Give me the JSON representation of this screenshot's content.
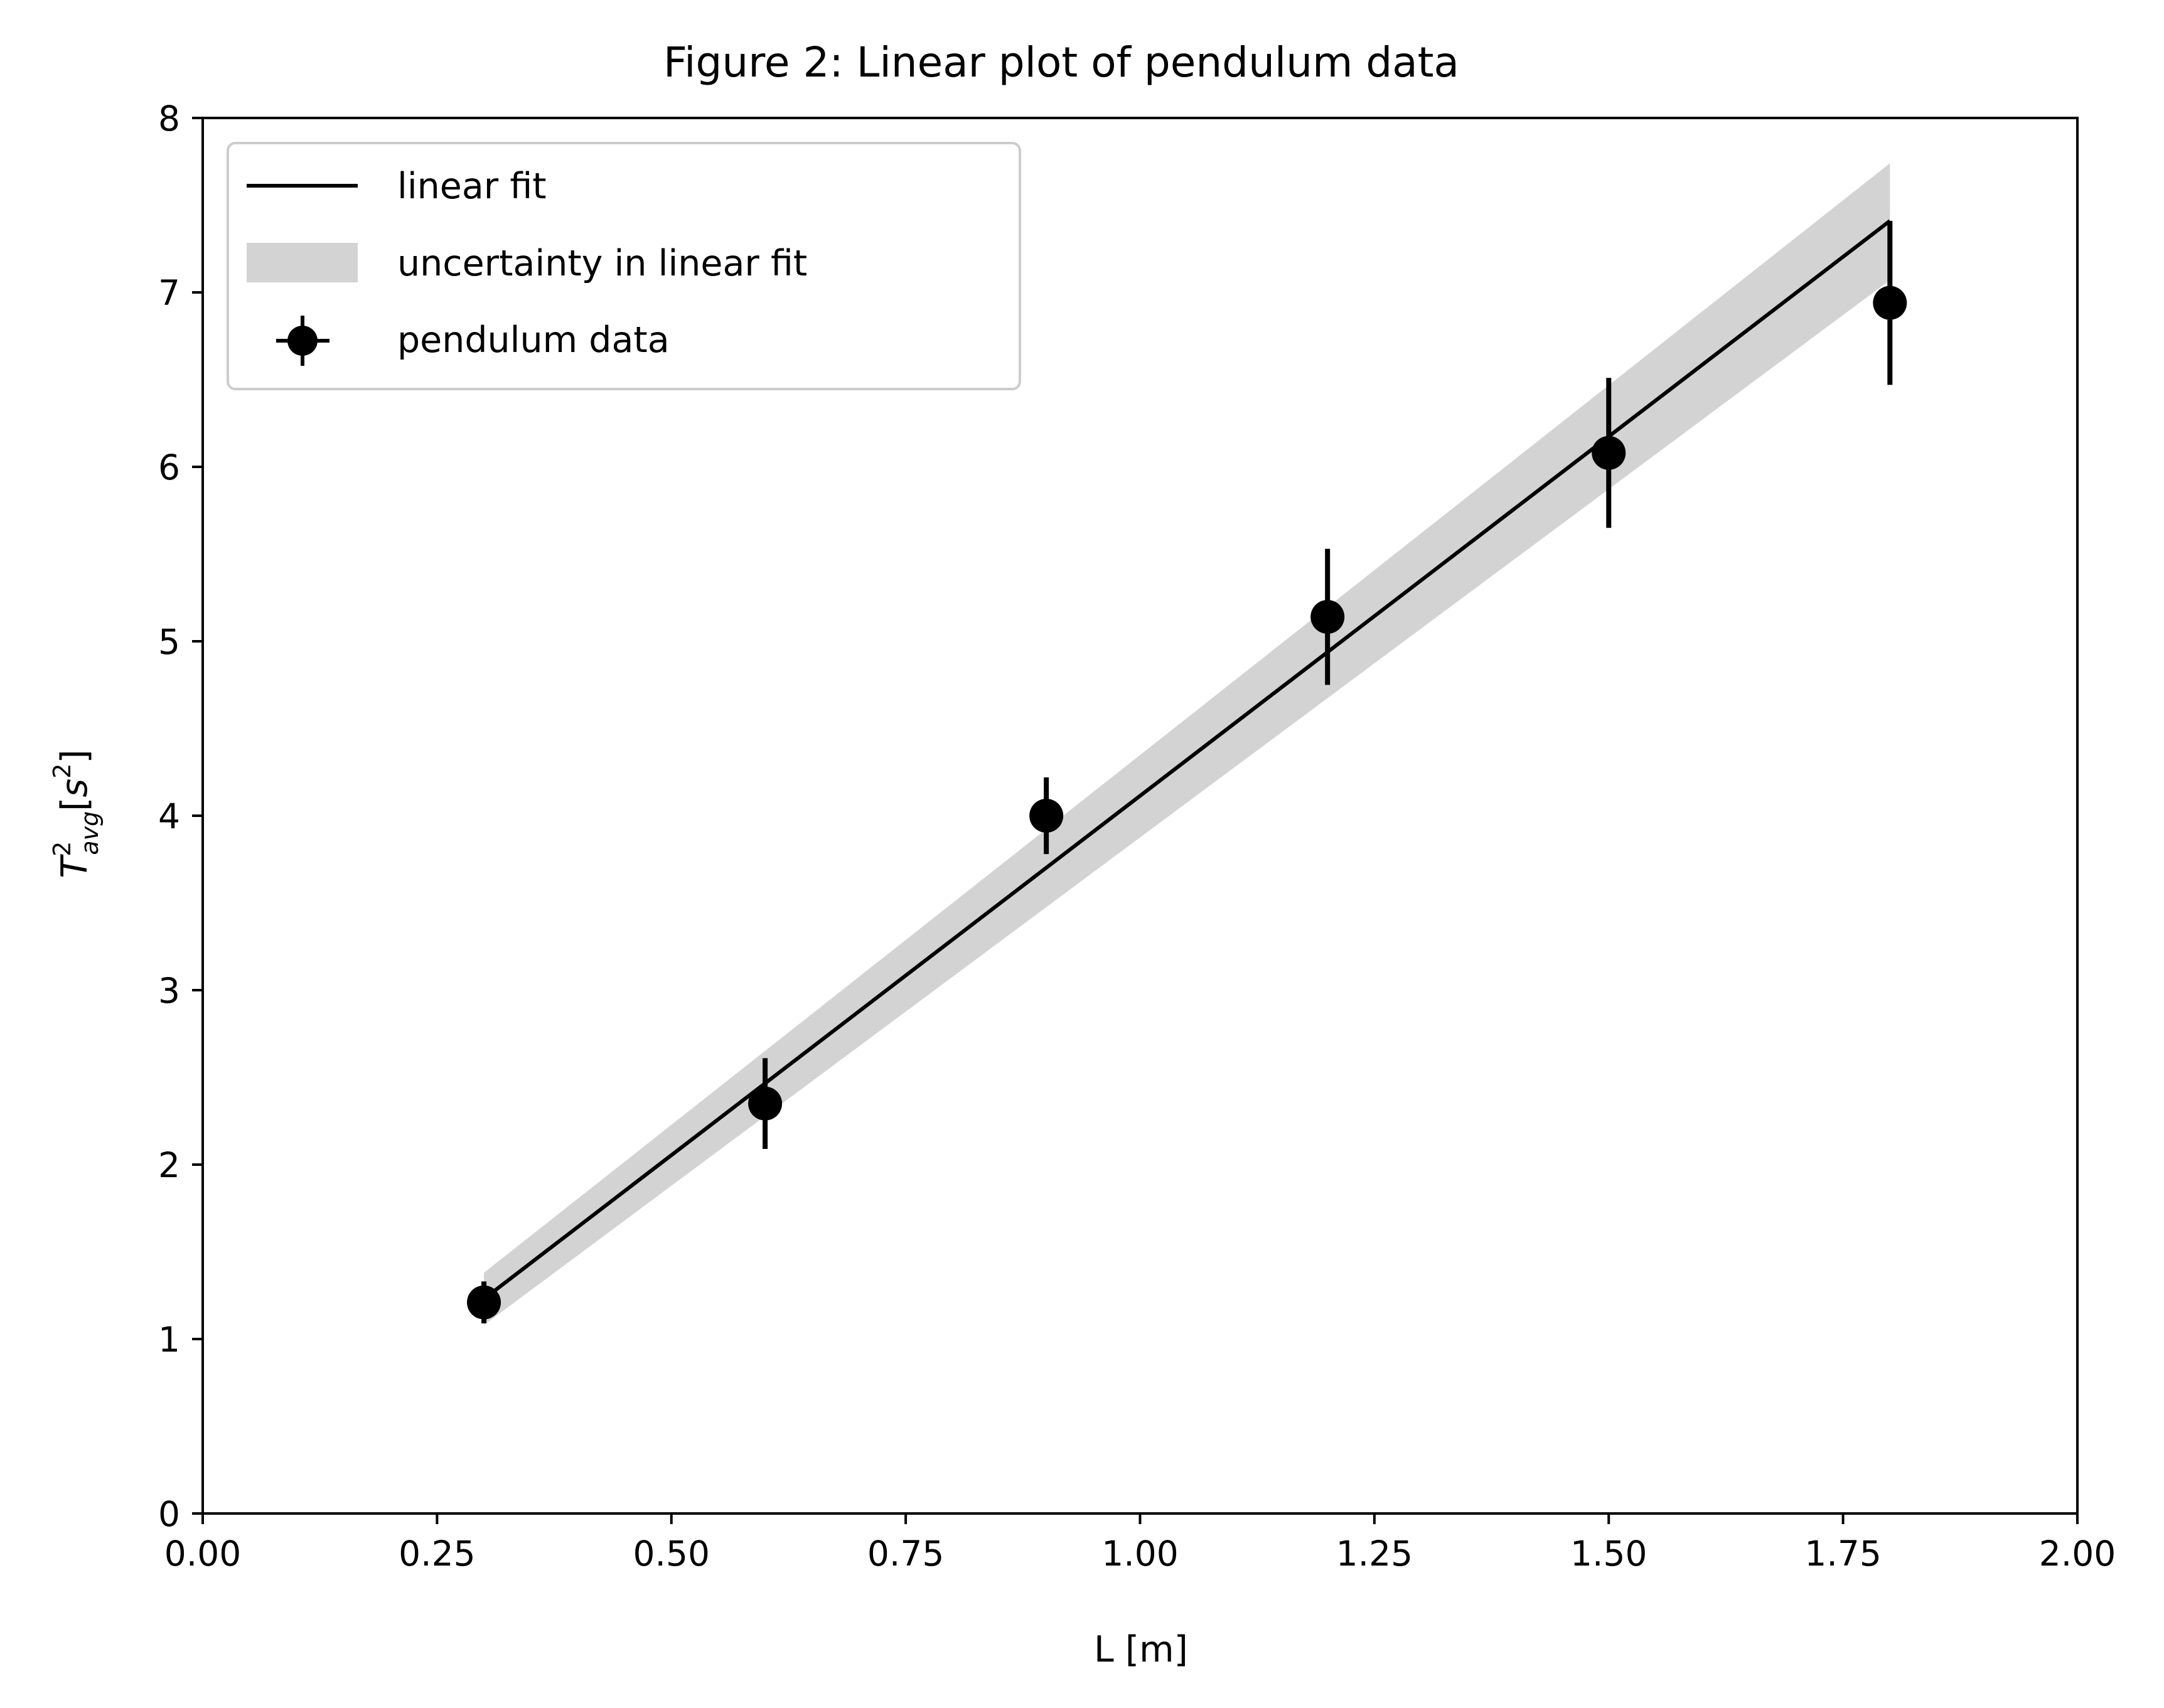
{
  "chart_data": {
    "type": "scatter",
    "title": "Figure 2: Linear plot of pendulum data",
    "xlabel": "L [m]",
    "ylabel": {
      "base": "T",
      "superscript": "2",
      "subscript": "avg",
      "bracket_open": "[",
      "unit_base": "s",
      "unit_superscript": "2",
      "bracket_close": "]"
    },
    "xlim": [
      0.0,
      2.0
    ],
    "ylim": [
      0,
      8
    ],
    "x_ticks": [
      "0.00",
      "0.25",
      "0.50",
      "0.75",
      "1.00",
      "1.25",
      "1.50",
      "1.75",
      "2.00"
    ],
    "y_ticks": [
      "0",
      "1",
      "2",
      "3",
      "4",
      "5",
      "6",
      "7",
      "8"
    ],
    "grid": false,
    "legend_position": "upper-left",
    "series": [
      {
        "name": "linear fit",
        "kind": "line",
        "color": "#000000",
        "x": [
          0.3,
          1.8
        ],
        "y": [
          1.23,
          7.41
        ]
      },
      {
        "name": "uncertainty in linear fit",
        "kind": "band",
        "color": "#d3d3d3",
        "x": [
          0.3,
          1.8
        ],
        "y_lower": [
          1.08,
          7.07
        ],
        "y_upper": [
          1.38,
          7.74
        ]
      },
      {
        "name": "pendulum data",
        "kind": "errorbar",
        "color": "#000000",
        "x": [
          0.3,
          0.6,
          0.9,
          1.2,
          1.5,
          1.8
        ],
        "y": [
          1.21,
          2.35,
          4.0,
          5.14,
          6.08,
          6.94
        ],
        "y_error": [
          0.12,
          0.26,
          0.22,
          0.39,
          0.43,
          0.47
        ]
      }
    ]
  }
}
